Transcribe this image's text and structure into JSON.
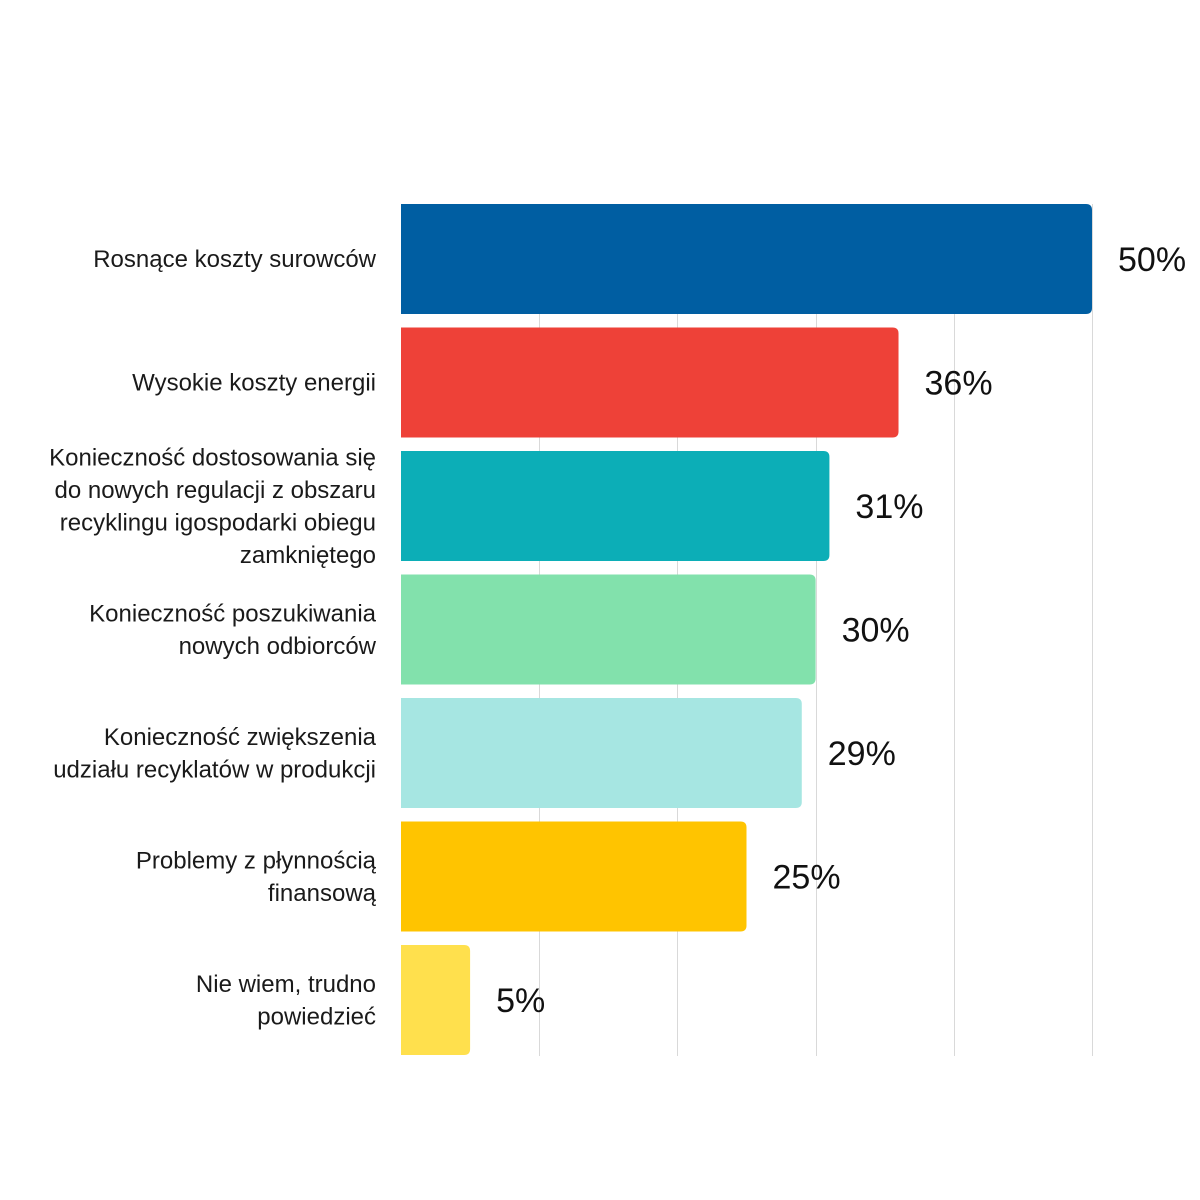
{
  "chart_data": {
    "type": "bar",
    "orientation": "horizontal",
    "title": "",
    "xlabel": "",
    "ylabel": "",
    "xlim": [
      0,
      50
    ],
    "grid": true,
    "legend": "none",
    "value_suffix": "%",
    "categories": [
      [
        "Rosnące koszty surowców"
      ],
      [
        "Wysokie koszty energii"
      ],
      [
        "Konieczność dostosowania się",
        "do nowych regulacji z obszaru",
        "recyklingu igospodarki obiegu",
        "zamkniętego"
      ],
      [
        "Konieczność poszukiwania",
        "nowych odbiorców"
      ],
      [
        "Konieczność zwiększenia",
        "udziału recyklatów w produkcji"
      ],
      [
        "Problemy z płynnością",
        "finansową"
      ],
      [
        "Nie wiem, trudno",
        "powiedzieć"
      ]
    ],
    "values": [
      50,
      36,
      31,
      30,
      29,
      25,
      5
    ],
    "value_labels": [
      "50%",
      "36%",
      "31%",
      "30%",
      "29%",
      "25%",
      "5%"
    ],
    "colors": [
      "#005ea2",
      "#ee4138",
      "#0caeb7",
      "#82e1ac",
      "#a6e6e2",
      "#ffc400",
      "#ffe04d"
    ]
  }
}
